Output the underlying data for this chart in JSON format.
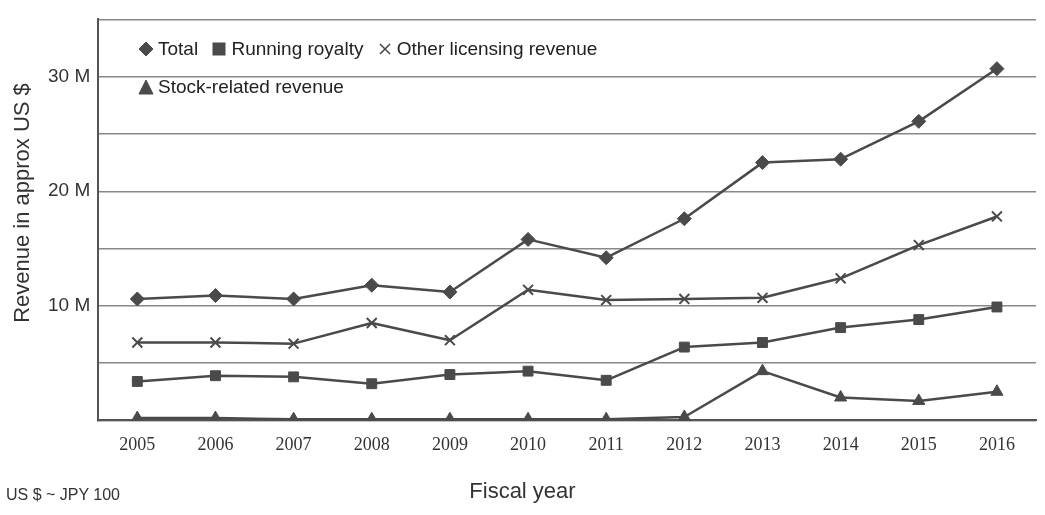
{
  "chart_data": {
    "type": "line",
    "xlabel": "Fiscal year",
    "ylabel": "Revenue in approx US $",
    "annotations": [
      "US $ ~ JPY 100"
    ],
    "categories": [
      "2005",
      "2006",
      "2007",
      "2008",
      "2009",
      "2010",
      "2011",
      "2012",
      "2013",
      "2014",
      "2015",
      "2016"
    ],
    "series": [
      {
        "name": "Total",
        "color": "#4a4a48",
        "marker": "diamond",
        "values": [
          10.6,
          10.9,
          10.6,
          11.8,
          11.2,
          15.8,
          14.2,
          17.6,
          22.5,
          22.8,
          26.1,
          30.7
        ]
      },
      {
        "name": "Running royalty",
        "color": "#4a4a48",
        "marker": "square",
        "values": [
          3.4,
          3.9,
          3.8,
          3.2,
          4.0,
          4.3,
          3.5,
          6.4,
          6.8,
          8.1,
          8.8,
          9.9
        ]
      },
      {
        "name": "Other licensing revenue",
        "color": "#4a4a48",
        "marker": "cross",
        "values": [
          6.8,
          6.8,
          6.7,
          8.5,
          7.0,
          11.4,
          10.5,
          10.6,
          10.7,
          12.4,
          15.3,
          17.8
        ]
      },
      {
        "name": "Stock-related revenue",
        "color": "#4a4a48",
        "marker": "triangle",
        "values": [
          0.2,
          0.2,
          0.1,
          0.1,
          0.1,
          0.1,
          0.1,
          0.3,
          4.3,
          2.0,
          1.7,
          2.5
        ]
      }
    ],
    "ylim": [
      0,
      35
    ],
    "yticks": [
      {
        "value": 0,
        "label": null
      },
      {
        "value": 5,
        "label": null
      },
      {
        "value": 10,
        "label": "10 M"
      },
      {
        "value": 15,
        "label": null
      },
      {
        "value": 20,
        "label": "20 M"
      },
      {
        "value": 25,
        "label": null
      },
      {
        "value": 30,
        "label": "30 M"
      },
      {
        "value": 35,
        "label": null
      }
    ],
    "grid": "y",
    "legend": "top left",
    "line_style": "solid"
  }
}
